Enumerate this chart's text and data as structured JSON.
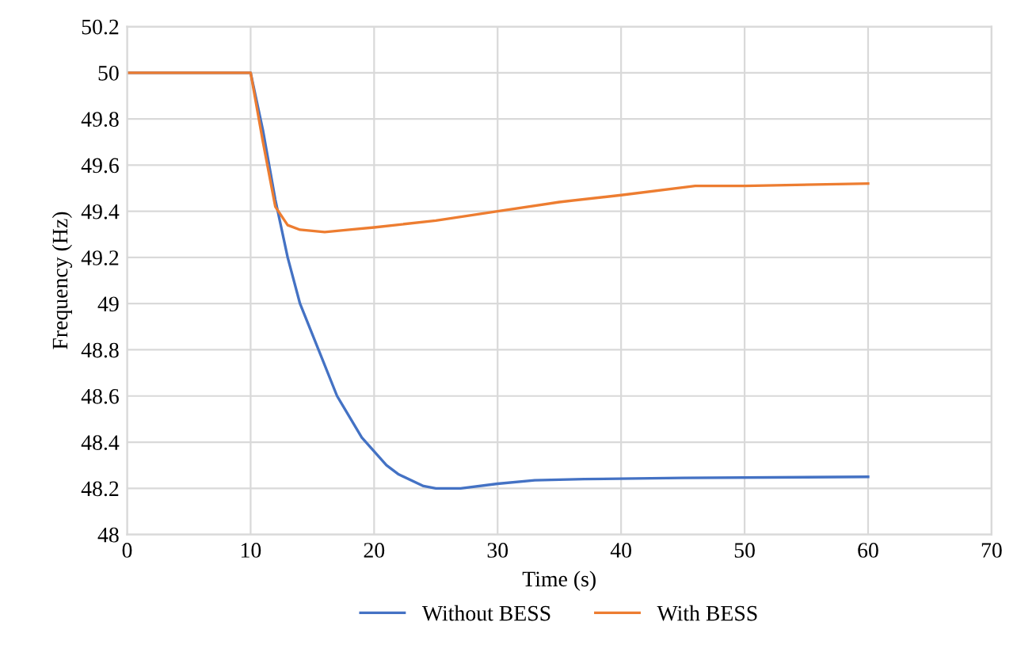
{
  "chart_data": {
    "type": "line",
    "xlabel": "Time (s)",
    "ylabel": "Frequency (Hz)",
    "xlim": [
      0,
      70
    ],
    "xticks": [
      0,
      10,
      20,
      30,
      40,
      50,
      60,
      70
    ],
    "ylim": [
      48,
      50.2
    ],
    "yticks": [
      48,
      {
        "value": 48.2,
        "label": "48.2"
      },
      {
        "value": 48.4,
        "label": "48.4"
      },
      {
        "value": 48.6,
        "label": "48.6"
      },
      {
        "value": 48.8,
        "label": "48.8"
      },
      49,
      {
        "value": 49.2,
        "label": "49.2"
      },
      {
        "value": 49.4,
        "label": "49.4"
      },
      {
        "value": 49.6,
        "label": "49.6"
      },
      {
        "value": 49.8,
        "label": "49.8"
      },
      50,
      {
        "value": 50.2,
        "label": "50.2"
      }
    ],
    "grid": true,
    "legend": "bottom",
    "marker": "none",
    "line_style": "solid",
    "series": [
      {
        "name": "Without BESS",
        "color": "#4472c4",
        "x": [
          0,
          10,
          11,
          12,
          13,
          14,
          15.5,
          17,
          19,
          21,
          22,
          24,
          25,
          27,
          30,
          33,
          37,
          45,
          60
        ],
        "values": [
          50,
          50,
          49.75,
          49.45,
          49.2,
          49.0,
          48.8,
          48.6,
          48.42,
          48.3,
          48.26,
          48.21,
          48.2,
          48.2,
          48.22,
          48.235,
          48.24,
          48.245,
          48.25
        ]
      },
      {
        "name": "With BESS",
        "color": "#ed7d31",
        "x": [
          0,
          10,
          11,
          12,
          13,
          14,
          16,
          18,
          20,
          25,
          30,
          35,
          40,
          46,
          50,
          60
        ],
        "values": [
          50,
          50,
          49.7,
          49.42,
          49.34,
          49.32,
          49.31,
          49.32,
          49.33,
          49.36,
          49.4,
          49.44,
          49.47,
          49.51,
          49.51,
          49.52
        ]
      }
    ]
  }
}
